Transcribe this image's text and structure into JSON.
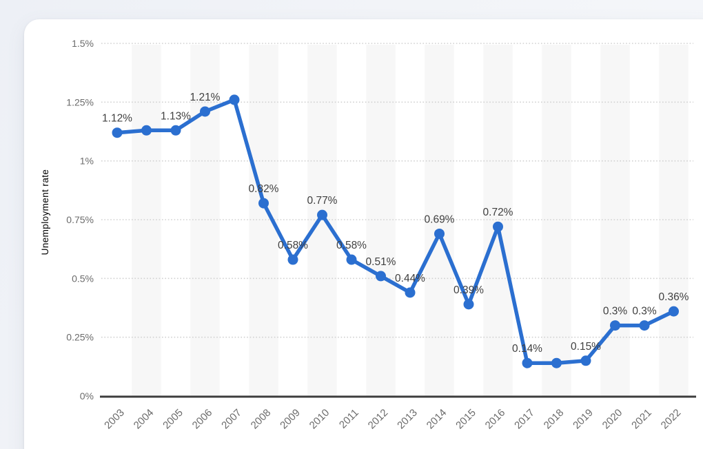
{
  "chart_data": {
    "type": "line",
    "title": "",
    "xlabel": "",
    "ylabel": "Unemployment rate",
    "categories": [
      "2003",
      "2004",
      "2005",
      "2006",
      "2007",
      "2008",
      "2009",
      "2010",
      "2011",
      "2012",
      "2013",
      "2014",
      "2015",
      "2016",
      "2017",
      "2018",
      "2019",
      "2020",
      "2021",
      "2022"
    ],
    "series": [
      {
        "name": "Unemployment rate",
        "values": [
          1.12,
          1.13,
          1.13,
          1.21,
          1.26,
          0.82,
          0.58,
          0.77,
          0.58,
          0.51,
          0.44,
          0.69,
          0.39,
          0.72,
          0.14,
          0.14,
          0.15,
          0.3,
          0.3,
          0.36
        ]
      }
    ],
    "point_labels": [
      "1.12%",
      "",
      "1.13%",
      "1.21%",
      "",
      "0.82%",
      "0.58%",
      "0.77%",
      "0.58%",
      "0.51%",
      "0.44%",
      "0.69%",
      "0.39%",
      "0.72%",
      "0.14%",
      "",
      "0.15%",
      "0.3%",
      "0.3%",
      "0.36%"
    ],
    "ylim": [
      0,
      1.5
    ],
    "y_tick_values": [
      0,
      0.25,
      0.5,
      0.75,
      1,
      1.25,
      1.5
    ],
    "y_tick_labels": [
      "0%",
      "0.25%",
      "0.5%",
      "0.75%",
      "1%",
      "1.25%",
      "1.5%"
    ],
    "grid": "horizontal-dotted",
    "legend": "none",
    "plot_bands_on": [
      "2004",
      "2006",
      "2008",
      "2010",
      "2012",
      "2014",
      "2016",
      "2018",
      "2020",
      "2022"
    ],
    "colors": {
      "line": "#2b6fd0",
      "point": "#2b6fd0",
      "point_label": "#3f3f3f",
      "tick_label": "#6b6b6b",
      "axis_title": "#6e6e6e",
      "axis_line": "#3d3d3d",
      "gridline": "#d0d0d0",
      "plot_band": "#f7f7f7",
      "card_background": "#ffffff",
      "page_background": "#edf0f6"
    }
  }
}
